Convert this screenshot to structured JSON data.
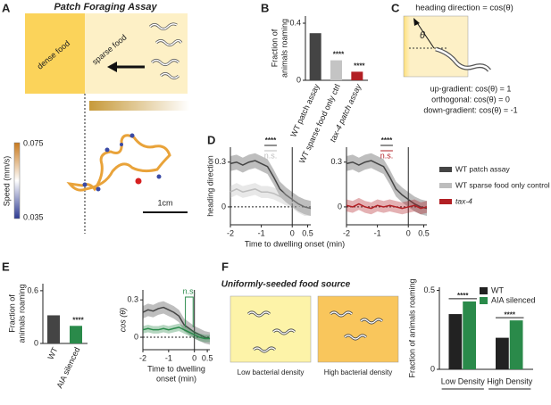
{
  "panels": [
    "A",
    "B",
    "C",
    "D",
    "E",
    "F"
  ],
  "assay": {
    "title": "Patch Foraging Assay",
    "dense": "dense food",
    "sparse": "sparse food",
    "colorbar_label": "Speed (mm/s)",
    "colorbar_max": "0.075",
    "colorbar_min": "0.035",
    "scale": "1cm"
  },
  "heading": {
    "title": "heading direction = cos(θ)",
    "theta": "θ",
    "lines": [
      "up-gradient: cos(θ) = 1",
      "orthogonal: cos(θ) = 0",
      "down-gradient: cos(θ) = -1"
    ]
  },
  "food": {
    "title": "Uniformly-seeded food source",
    "low": "Low bacterial density",
    "high": "High bacterial density"
  },
  "chart_data": [
    {
      "type": "bar",
      "ylabel": [
        "Fraction of",
        "animals roaming"
      ],
      "categories": [
        "WT patch assay",
        "WT sparse food only ctrl",
        "tax-4 patch assay"
      ],
      "values": [
        0.33,
        0.14,
        0.06
      ],
      "colors": [
        "#444444",
        "#c4c4c4",
        "#b21f24"
      ],
      "significance": [
        null,
        "****",
        "****"
      ],
      "ylim": [
        0,
        0.45
      ],
      "yticks": [
        0,
        0.4
      ]
    },
    {
      "type": "line",
      "ylabel": "heading direction",
      "xlabel": "Time to dwelling onset (min)",
      "x": [
        -2,
        -1.8,
        -1.6,
        -1.4,
        -1.2,
        -1,
        -0.8,
        -0.6,
        -0.4,
        -0.2,
        0,
        0.2,
        0.4,
        0.6
      ],
      "series": [
        {
          "name": "WT patch assay",
          "color": "#444444",
          "values": [
            0.29,
            0.3,
            0.28,
            0.3,
            0.31,
            0.29,
            0.27,
            0.2,
            0.12,
            0.08,
            0.05,
            0.02,
            0,
            -0.01
          ],
          "errors": [
            0.05,
            0.05,
            0.05,
            0.05,
            0.05,
            0.05,
            0.05,
            0.05,
            0.05,
            0.05,
            0.05,
            0.05,
            0.05,
            0.05
          ]
        },
        {
          "name": "WT sparse food only control",
          "color": "#bdbdbd",
          "values": [
            0.1,
            0.12,
            0.1,
            0.11,
            0.12,
            0.1,
            0.1,
            0.09,
            0.07,
            0.05,
            0.03,
            0,
            -0.02,
            -0.02
          ],
          "errors": [
            0.04,
            0.04,
            0.04,
            0.04,
            0.04,
            0.04,
            0.04,
            0.04,
            0.04,
            0.04,
            0.04,
            0.04,
            0.04,
            0.04
          ]
        }
      ],
      "annotations": [
        "****",
        "n.s."
      ],
      "xlim": [
        -2,
        0.6
      ],
      "xticks": [
        -2,
        -1,
        0,
        0.5
      ],
      "ylim": [
        -0.12,
        0.4
      ],
      "yticks": [
        0,
        0.3
      ]
    },
    {
      "type": "line",
      "x": [
        -2,
        -1.8,
        -1.6,
        -1.4,
        -1.2,
        -1,
        -0.8,
        -0.6,
        -0.4,
        -0.2,
        0,
        0.2,
        0.4,
        0.6
      ],
      "series": [
        {
          "color": "#444444",
          "values": [
            0.29,
            0.3,
            0.28,
            0.3,
            0.31,
            0.29,
            0.27,
            0.2,
            0.12,
            0.08,
            0.05,
            0.02,
            0,
            -0.01
          ],
          "errors": [
            0.05,
            0.05,
            0.05,
            0.05,
            0.05,
            0.05,
            0.05,
            0.05,
            0.05,
            0.05,
            0.05,
            0.05,
            0.05,
            0.05
          ]
        },
        {
          "name": "tax-4",
          "color": "#b21f24",
          "values": [
            0.01,
            0,
            0.02,
            0,
            -0.01,
            0.01,
            0,
            0.01,
            0,
            -0.01,
            0,
            0.01,
            -0.01,
            0
          ],
          "errors": [
            0.04,
            0.04,
            0.04,
            0.04,
            0.04,
            0.04,
            0.04,
            0.04,
            0.04,
            0.04,
            0.04,
            0.04,
            0.04,
            0.04
          ]
        }
      ],
      "annotations": [
        "****",
        "n.s."
      ],
      "xlim": [
        -2,
        0.6
      ],
      "xticks": [
        -2,
        -1,
        0,
        0.5
      ],
      "ylim": [
        -0.12,
        0.4
      ],
      "yticks": [
        0,
        0.3
      ]
    },
    {
      "type": "bar",
      "ylabel": [
        "Fraction of",
        "animals roaming"
      ],
      "categories": [
        "WT",
        "AIA silenced"
      ],
      "values": [
        0.32,
        0.2
      ],
      "colors": [
        "#444444",
        "#2a8a4a"
      ],
      "significance": [
        null,
        "****"
      ],
      "ylim": [
        0,
        0.68
      ],
      "yticks": [
        0,
        0.6
      ]
    },
    {
      "type": "line",
      "ylabel": "cos (θ)",
      "xlabel": [
        "Time to dwelling",
        "onset (min)"
      ],
      "x": [
        -2,
        -1.8,
        -1.6,
        -1.4,
        -1.2,
        -1,
        -0.8,
        -0.6,
        -0.4,
        -0.2,
        0,
        0.2,
        0.4,
        0.6
      ],
      "series": [
        {
          "color": "#444444",
          "values": [
            0.2,
            0.22,
            0.21,
            0.23,
            0.24,
            0.22,
            0.2,
            0.17,
            0.1,
            0.07,
            0.04,
            0.02,
            0,
            -0.01
          ],
          "errors": [
            0.05,
            0.05,
            0.05,
            0.05,
            0.05,
            0.05,
            0.05,
            0.05,
            0.05,
            0.05,
            0.05,
            0.05,
            0.05,
            0.05
          ]
        },
        {
          "color": "#2a8a4a",
          "values": [
            0.06,
            0.07,
            0.06,
            0.06,
            0.07,
            0.06,
            0.07,
            0.08,
            0.06,
            0.04,
            0.02,
            0,
            -0.01,
            -0.01
          ],
          "errors": [
            0.03,
            0.03,
            0.03,
            0.03,
            0.03,
            0.03,
            0.03,
            0.03,
            0.03,
            0.03,
            0.03,
            0.03,
            0.03,
            0.03
          ]
        }
      ],
      "annotations": [
        "n.s."
      ],
      "xlim": [
        -2,
        0.6
      ],
      "xticks": [
        -2,
        -1,
        0,
        0.5
      ],
      "ylim": [
        -0.1,
        0.38
      ],
      "yticks": [
        0,
        0.3
      ]
    },
    {
      "type": "bar",
      "ylabel": [
        "Fraction of animals roaming"
      ],
      "categories": [
        "Low Density",
        "High Density"
      ],
      "series": [
        {
          "name": "WT",
          "color": "#222222",
          "values": [
            0.35,
            0.2
          ]
        },
        {
          "name": "AIA silenced",
          "color": "#2a8a4a",
          "values": [
            0.43,
            0.31
          ]
        }
      ],
      "significance": [
        "****",
        "****"
      ],
      "ylim": [
        0,
        0.52
      ],
      "yticks": [
        0,
        0.5
      ]
    }
  ]
}
